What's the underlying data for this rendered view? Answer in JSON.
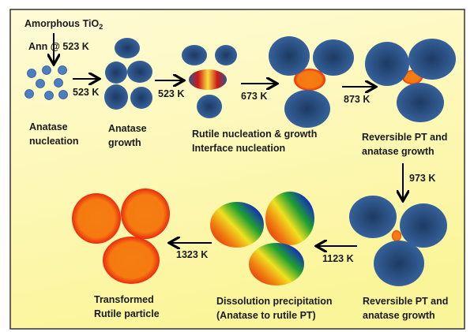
{
  "start": {
    "material": "Amorphous TiO",
    "subscript": "2",
    "anneal": "Ann @ 523 K"
  },
  "stages": [
    {
      "line1": "Anatase",
      "line2": "nucleation"
    },
    {
      "line1": "Anatase",
      "line2": "growth"
    },
    {
      "line1": "Rutile nucleation & growth",
      "line2": "Interface nucleation"
    },
    {
      "line1": "Reversible PT and",
      "line2": "anatase growth"
    },
    {
      "line1": "Reversible PT and",
      "line2": "anatase growth"
    },
    {
      "line1": "Dissolution precipitation",
      "line2": "(Anatase to rutile PT)"
    },
    {
      "line1": "Transformed",
      "line2": "Rutile particle"
    }
  ],
  "transitions": [
    "523 K",
    "523 K",
    "673 K",
    "873 K",
    "973 K",
    "1123 K",
    "1323 K"
  ],
  "colors": {
    "background_top": "#fffbd0",
    "background_bottom": "#fbf59a",
    "anatase": "#2f5586",
    "rutile": "#f07a10",
    "rutile_edge": "#ee2a10",
    "small_particle": "#4a7fc0"
  }
}
